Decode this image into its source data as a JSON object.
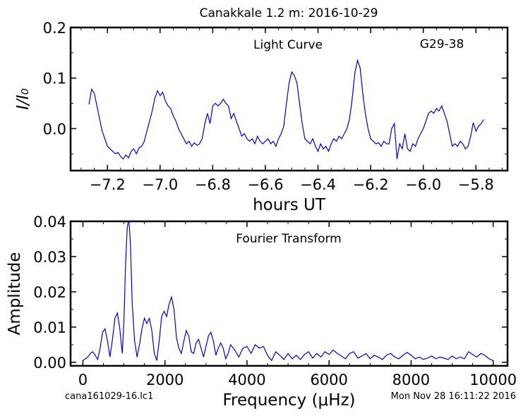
{
  "header": {
    "title": "Canakkale 1.2 m:  2016-10-29"
  },
  "footer": {
    "left": "cana161029-16.lc1",
    "right": "Mon Nov 28 16:11:22 2016"
  },
  "colors": {
    "line": "#0000dd",
    "axes": "#000000",
    "background": "#ffffff"
  },
  "chart_data": [
    {
      "type": "line",
      "title": "Light Curve",
      "annotation": "G29-38",
      "xlabel": "hours UT",
      "ylabel": "I/I₀",
      "xlim": [
        -7.34,
        -5.68
      ],
      "ylim": [
        -0.083,
        0.2
      ],
      "xticks": [
        -7.2,
        -7.0,
        -6.8,
        -6.6,
        -6.4,
        -6.2,
        -6.0,
        -5.8
      ],
      "xtick_labels": [
        "−7.2",
        "−7.0",
        "−6.8",
        "−6.6",
        "−6.4",
        "−6.2",
        "−6.0",
        "−5.8"
      ],
      "yticks": [
        0.0,
        0.1,
        0.2
      ],
      "ytick_labels": [
        "0.0",
        "0.1",
        "0.2"
      ],
      "grid": false,
      "series": [
        {
          "x": [
            -7.27,
            -7.26,
            -7.25,
            -7.24,
            -7.23,
            -7.22,
            -7.21,
            -7.2,
            -7.19,
            -7.18,
            -7.17,
            -7.16,
            -7.15,
            -7.14,
            -7.13,
            -7.12,
            -7.11,
            -7.1,
            -7.09,
            -7.08,
            -7.07,
            -7.06,
            -7.05,
            -7.04,
            -7.03,
            -7.02,
            -7.01,
            -7.0,
            -6.99,
            -6.98,
            -6.97,
            -6.96,
            -6.95,
            -6.94,
            -6.93,
            -6.92,
            -6.91,
            -6.9,
            -6.89,
            -6.88,
            -6.87,
            -6.86,
            -6.85,
            -6.84,
            -6.83,
            -6.82,
            -6.81,
            -6.8,
            -6.79,
            -6.78,
            -6.77,
            -6.76,
            -6.75,
            -6.74,
            -6.73,
            -6.72,
            -6.71,
            -6.7,
            -6.69,
            -6.68,
            -6.67,
            -6.66,
            -6.65,
            -6.64,
            -6.63,
            -6.62,
            -6.61,
            -6.6,
            -6.59,
            -6.58,
            -6.57,
            -6.56,
            -6.55,
            -6.54,
            -6.53,
            -6.52,
            -6.51,
            -6.5,
            -6.49,
            -6.48,
            -6.47,
            -6.46,
            -6.45,
            -6.44,
            -6.43,
            -6.42,
            -6.41,
            -6.4,
            -6.39,
            -6.38,
            -6.37,
            -6.36,
            -6.35,
            -6.34,
            -6.33,
            -6.32,
            -6.31,
            -6.3,
            -6.29,
            -6.28,
            -6.27,
            -6.26,
            -6.25,
            -6.24,
            -6.23,
            -6.22,
            -6.21,
            -6.2,
            -6.19,
            -6.18,
            -6.17,
            -6.16,
            -6.15,
            -6.14,
            -6.13,
            -6.12,
            -6.11,
            -6.1,
            -6.09,
            -6.08,
            -6.07,
            -6.06,
            -6.05,
            -6.04,
            -6.03,
            -6.02,
            -6.01,
            -6.0,
            -5.99,
            -5.98,
            -5.97,
            -5.96,
            -5.95,
            -5.94,
            -5.93,
            -5.92,
            -5.91,
            -5.9,
            -5.89,
            -5.88,
            -5.87,
            -5.86,
            -5.85,
            -5.84,
            -5.83,
            -5.82,
            -5.81,
            -5.8,
            -5.79,
            -5.78,
            -5.77
          ],
          "y": [
            0.048,
            0.078,
            0.07,
            0.045,
            0.02,
            -0.005,
            -0.02,
            -0.035,
            -0.04,
            -0.045,
            -0.05,
            -0.047,
            -0.055,
            -0.06,
            -0.052,
            -0.058,
            -0.045,
            -0.04,
            -0.05,
            -0.038,
            -0.035,
            -0.025,
            -0.005,
            0.015,
            0.035,
            0.06,
            0.075,
            0.065,
            0.072,
            0.055,
            0.045,
            0.04,
            0.025,
            0.015,
            0.0,
            -0.01,
            -0.02,
            -0.03,
            -0.025,
            -0.035,
            -0.028,
            -0.033,
            -0.03,
            -0.02,
            0.01,
            0.03,
            0.01,
            0.045,
            0.05,
            0.045,
            0.05,
            0.058,
            0.05,
            0.045,
            0.02,
            0.03,
            0.015,
            0.0,
            -0.015,
            -0.01,
            -0.02,
            -0.025,
            -0.02,
            -0.03,
            -0.015,
            -0.025,
            -0.03,
            -0.025,
            -0.02,
            -0.03,
            -0.025,
            -0.035,
            -0.02,
            -0.01,
            0.005,
            0.05,
            0.09,
            0.112,
            0.105,
            0.09,
            0.05,
            0.01,
            -0.02,
            -0.025,
            -0.03,
            -0.02,
            -0.035,
            -0.045,
            -0.03,
            -0.04,
            -0.035,
            -0.045,
            -0.03,
            -0.02,
            -0.025,
            -0.015,
            -0.02,
            -0.01,
            0.0,
            0.02,
            0.06,
            0.11,
            0.135,
            0.12,
            0.07,
            0.03,
            0.0,
            -0.02,
            -0.025,
            -0.03,
            -0.028,
            -0.035,
            -0.025,
            -0.03,
            -0.03,
            0.0,
            0.01,
            -0.06,
            -0.03,
            -0.04,
            -0.01,
            -0.04,
            -0.045,
            -0.03,
            -0.035,
            -0.02,
            -0.01,
            0.0,
            0.015,
            0.03,
            0.035,
            0.03,
            0.04,
            0.035,
            0.045,
            0.03,
            0.015,
            -0.01,
            -0.035,
            -0.03,
            -0.035,
            -0.025,
            -0.03,
            -0.04,
            -0.035,
            -0.015,
            0.012,
            -0.005,
            0.005,
            0.01,
            0.018
          ]
        }
      ]
    },
    {
      "type": "line",
      "title": "Fourier Transform",
      "xlabel": "Frequency (μHz)",
      "ylabel": "Amplitude",
      "xlim": [
        -300,
        10350
      ],
      "ylim": [
        -0.001,
        0.04
      ],
      "xticks": [
        0,
        2000,
        4000,
        6000,
        8000,
        10000
      ],
      "xtick_labels": [
        "0",
        "2000",
        "4000",
        "6000",
        "8000",
        "10000"
      ],
      "yticks": [
        0.0,
        0.01,
        0.02,
        0.03,
        0.04
      ],
      "ytick_labels": [
        "0.00",
        "0.01",
        "0.02",
        "0.03",
        "0.04"
      ],
      "grid": false,
      "series": [
        {
          "x": [
            0,
            60,
            120,
            180,
            240,
            300,
            360,
            420,
            480,
            540,
            600,
            660,
            720,
            780,
            840,
            900,
            960,
            1000,
            1040,
            1080,
            1120,
            1160,
            1200,
            1260,
            1320,
            1380,
            1440,
            1500,
            1560,
            1620,
            1680,
            1740,
            1800,
            1860,
            1920,
            1980,
            2040,
            2100,
            2160,
            2220,
            2280,
            2340,
            2400,
            2460,
            2520,
            2580,
            2640,
            2700,
            2760,
            2820,
            2880,
            2940,
            3000,
            3060,
            3120,
            3180,
            3240,
            3300,
            3360,
            3420,
            3480,
            3540,
            3600,
            3700,
            3800,
            3900,
            4000,
            4100,
            4200,
            4300,
            4400,
            4500,
            4600,
            4700,
            4800,
            4900,
            5000,
            5100,
            5200,
            5300,
            5400,
            5500,
            5600,
            5700,
            5800,
            5900,
            6000,
            6100,
            6200,
            6300,
            6400,
            6500,
            6600,
            6700,
            6800,
            6900,
            7000,
            7100,
            7200,
            7300,
            7400,
            7500,
            7600,
            7700,
            7800,
            7900,
            8000,
            8100,
            8200,
            8300,
            8400,
            8500,
            8600,
            8700,
            8800,
            8900,
            9000,
            9100,
            9200,
            9300,
            9400,
            9500,
            9600,
            9700,
            9800,
            9900,
            10000
          ],
          "y": [
            0.0005,
            0.001,
            0.0015,
            0.0025,
            0.003,
            0.002,
            0.0008,
            0.004,
            0.0085,
            0.0095,
            0.006,
            0.0015,
            0.0065,
            0.0125,
            0.014,
            0.0095,
            0.0025,
            0.012,
            0.028,
            0.038,
            0.041,
            0.033,
            0.017,
            0.006,
            0.0015,
            0.005,
            0.0095,
            0.0125,
            0.011,
            0.0125,
            0.009,
            0.0025,
            0.0005,
            0.006,
            0.013,
            0.0145,
            0.013,
            0.0165,
            0.0185,
            0.015,
            0.007,
            0.004,
            0.0025,
            0.006,
            0.009,
            0.0075,
            0.003,
            0.0025,
            0.0055,
            0.0065,
            0.004,
            0.0015,
            0.0045,
            0.0075,
            0.0085,
            0.006,
            0.002,
            0.004,
            0.0055,
            0.004,
            0.001,
            0.0025,
            0.005,
            0.0035,
            0.0015,
            0.004,
            0.0045,
            0.0025,
            0.005,
            0.004,
            0.0045,
            0.002,
            0.0005,
            0.003,
            0.002,
            0.0008,
            0.0025,
            0.001,
            0.002,
            0.0008,
            0.0022,
            0.003,
            0.0012,
            0.0025,
            0.0015,
            0.003,
            0.0022,
            0.0035,
            0.0025,
            0.0018,
            0.001,
            0.0025,
            0.003,
            0.0012,
            0.0018,
            0.0025,
            0.001,
            0.002,
            0.0015,
            0.0008,
            0.002,
            0.0025,
            0.0015,
            0.001,
            0.002,
            0.0028,
            0.002,
            0.001,
            0.0015,
            0.0008,
            0.0012,
            0.0018,
            0.001,
            0.0015,
            0.0012,
            0.0008,
            0.0018,
            0.001,
            0.0015,
            0.001,
            0.003,
            0.0022,
            0.0015,
            0.0025,
            0.002,
            0.001,
            0.0005
          ]
        }
      ]
    }
  ]
}
